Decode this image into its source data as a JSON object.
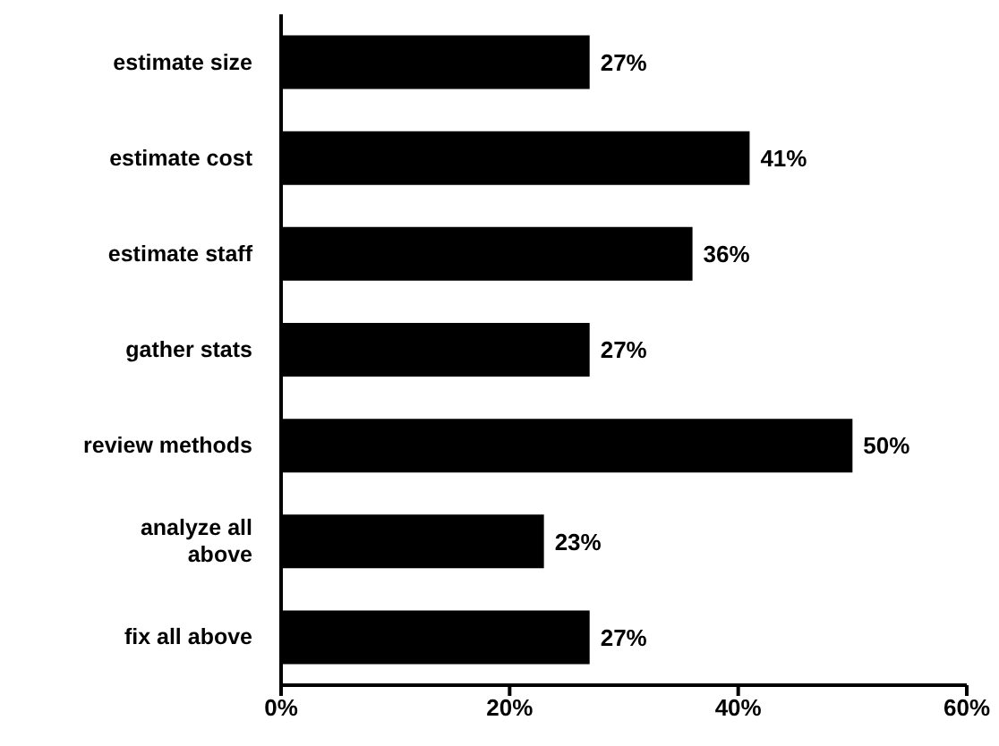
{
  "chart_data": {
    "type": "bar",
    "orientation": "horizontal",
    "categories": [
      "estimate size",
      "estimate  cost",
      "estimate staff",
      "gather stats",
      "review methods",
      "analyze all above",
      "fix all above"
    ],
    "values": [
      27,
      41,
      36,
      27,
      50,
      23,
      27
    ],
    "value_labels": [
      "27%",
      "41%",
      "36%",
      "27%",
      "50%",
      "23%",
      "27%"
    ],
    "color": "#000000",
    "xlim": [
      0,
      60
    ],
    "xticks": [
      {
        "value": 0,
        "label": "0%"
      },
      {
        "value": 20,
        "label": "20%"
      },
      {
        "value": 40,
        "label": "40%"
      },
      {
        "value": 60,
        "label": "60%"
      }
    ],
    "grid": false,
    "legend": false
  }
}
